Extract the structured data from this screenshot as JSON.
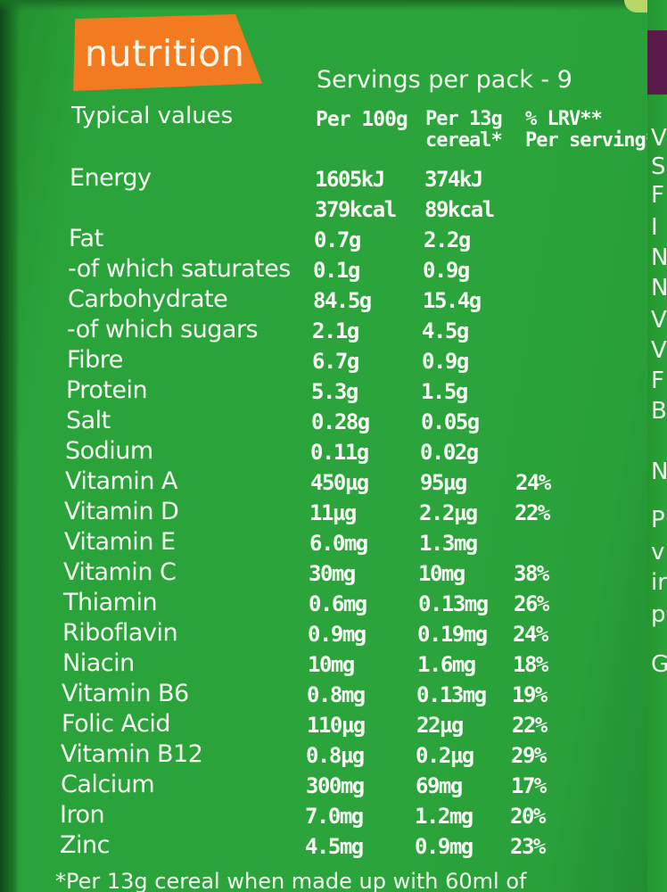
{
  "badge": {
    "label": "nutrition"
  },
  "servings": "Servings per pack - 9",
  "headers": {
    "typical": "Typical values",
    "per100_line1": "Per 100g",
    "per13_line1": "Per 13g",
    "per13_line2": "cereal*",
    "lrv_line1": "% LRV**",
    "lrv_line2": "Per serving*"
  },
  "energy": {
    "name": "Energy",
    "kj_100": "1605kJ",
    "kj_13": "374kJ",
    "kcal_100": "379kcal",
    "kcal_13": "89kcal"
  },
  "nutrients": [
    {
      "name": "Fat",
      "per100": "0.7g",
      "per13": "2.2g",
      "lrv": ""
    },
    {
      "name": "-of which saturates",
      "per100": "0.1g",
      "per13": "0.9g",
      "lrv": ""
    },
    {
      "name": "Carbohydrate",
      "per100": "84.5g",
      "per13": "15.4g",
      "lrv": ""
    },
    {
      "name": "-of which sugars",
      "per100": "2.1g",
      "per13": "4.5g",
      "lrv": ""
    },
    {
      "name": "Fibre",
      "per100": "6.7g",
      "per13": "0.9g",
      "lrv": ""
    },
    {
      "name": "Protein",
      "per100": "5.3g",
      "per13": "1.5g",
      "lrv": ""
    },
    {
      "name": "Salt",
      "per100": "0.28g",
      "per13": "0.05g",
      "lrv": ""
    },
    {
      "name": "Sodium",
      "per100": "0.11g",
      "per13": "0.02g",
      "lrv": ""
    },
    {
      "name": "Vitamin A",
      "per100": "450µg",
      "per13": "95µg",
      "lrv": "24%"
    },
    {
      "name": "Vitamin D",
      "per100": "11µg",
      "per13": "2.2µg",
      "lrv": "22%"
    },
    {
      "name": "Vitamin E",
      "per100": "6.0mg",
      "per13": "1.3mg",
      "lrv": ""
    },
    {
      "name": "Vitamin C",
      "per100": "30mg",
      "per13": "10mg",
      "lrv": "38%"
    },
    {
      "name": "Thiamin",
      "per100": "0.6mg",
      "per13": "0.13mg",
      "lrv": "26%"
    },
    {
      "name": "Riboflavin",
      "per100": "0.9mg",
      "per13": "0.19mg",
      "lrv": "24%"
    },
    {
      "name": "Niacin",
      "per100": "10mg",
      "per13": "1.6mg",
      "lrv": "18%"
    },
    {
      "name": "Vitamin B6",
      "per100": "0.8mg",
      "per13": "0.13mg",
      "lrv": "19%"
    },
    {
      "name": "Folic Acid",
      "per100": "110µg",
      "per13": "22µg",
      "lrv": "22%"
    },
    {
      "name": "Vitamin B12",
      "per100": "0.8µg",
      "per13": "0.2µg",
      "lrv": "29%"
    },
    {
      "name": "Calcium",
      "per100": "300mg",
      "per13": "69mg",
      "lrv": "17%"
    },
    {
      "name": "Iron",
      "per100": "7.0mg",
      "per13": "1.2mg",
      "lrv": "20%"
    },
    {
      "name": "Zinc",
      "per100": "4.5mg",
      "per13": "0.9mg",
      "lrv": "23%"
    }
  ],
  "footnote": "*Per 13g cereal when made up with 60ml of",
  "edge_letters": [
    "V",
    "S",
    "F",
    "I",
    "N",
    "N",
    "V",
    "V",
    "F",
    "B",
    "N",
    "P",
    "v",
    "ir",
    "p",
    "G"
  ],
  "colors": {
    "panel_green": "#2aa33a",
    "badge_orange": "#f27b22",
    "text": "#f4fbf2",
    "purple_tab": "#5b1a4a"
  }
}
